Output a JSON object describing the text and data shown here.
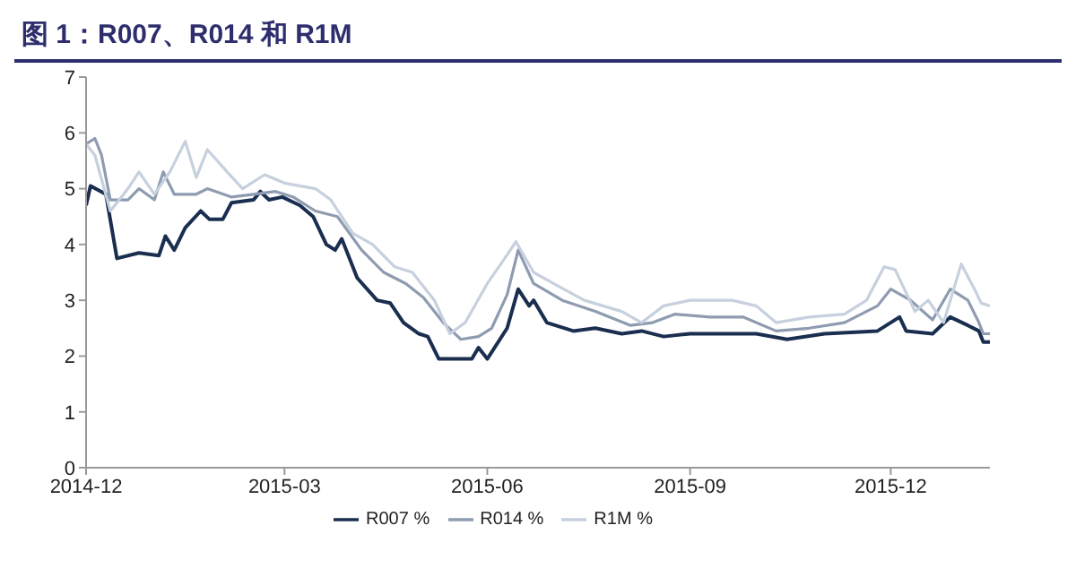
{
  "chart_data": {
    "type": "line",
    "title": "图 1：R007、R014 和 R1M",
    "legend": "bottom",
    "grid": false,
    "marker": "none",
    "line_style": "solid",
    "xlim": [
      "2014-12-01",
      "2016-01-15"
    ],
    "xticks": [
      "2014-12",
      "2015-03",
      "2015-06",
      "2015-09",
      "2015-12"
    ],
    "ylim": [
      0,
      7
    ],
    "yticks": [
      0,
      1,
      2,
      3,
      4,
      5,
      6,
      7
    ],
    "series": [
      {
        "name": "R007 %",
        "color": "#1a2e4f",
        "x": [
          "2014-12-01",
          "2014-12-03",
          "2014-12-10",
          "2014-12-15",
          "2014-12-25",
          "2015-01-03",
          "2015-01-06",
          "2015-01-10",
          "2015-01-15",
          "2015-01-22",
          "2015-01-26",
          "2015-02-01",
          "2015-02-05",
          "2015-02-15",
          "2015-02-18",
          "2015-02-22",
          "2015-02-28",
          "2015-03-08",
          "2015-03-14",
          "2015-03-20",
          "2015-03-24",
          "2015-03-27",
          "2015-04-03",
          "2015-04-12",
          "2015-04-18",
          "2015-04-24",
          "2015-05-01",
          "2015-05-05",
          "2015-05-10",
          "2015-05-25",
          "2015-05-28",
          "2015-06-01",
          "2015-06-10",
          "2015-06-15",
          "2015-06-20",
          "2015-06-22",
          "2015-06-28",
          "2015-07-10",
          "2015-07-20",
          "2015-08-01",
          "2015-08-10",
          "2015-08-20",
          "2015-09-01",
          "2015-10-01",
          "2015-10-15",
          "2015-11-01",
          "2015-11-25",
          "2015-12-05",
          "2015-12-08",
          "2015-12-20",
          "2015-12-28",
          "2016-01-05",
          "2016-01-10",
          "2016-01-12",
          "2016-01-15"
        ],
        "values": [
          4.7,
          5.05,
          4.9,
          3.75,
          3.85,
          3.8,
          4.15,
          3.9,
          4.3,
          4.6,
          4.45,
          4.45,
          4.75,
          4.8,
          4.95,
          4.8,
          4.85,
          4.7,
          4.5,
          4.0,
          3.9,
          4.1,
          3.4,
          3.0,
          2.95,
          2.6,
          2.4,
          2.35,
          1.95,
          1.95,
          2.15,
          1.95,
          2.5,
          3.2,
          2.9,
          3.0,
          2.6,
          2.45,
          2.5,
          2.4,
          2.45,
          2.35,
          2.4,
          2.4,
          2.3,
          2.4,
          2.45,
          2.7,
          2.45,
          2.4,
          2.7,
          2.55,
          2.45,
          2.25,
          2.25
        ]
      },
      {
        "name": "R014 %",
        "color": "#8e9bb0",
        "x": [
          "2014-12-01",
          "2014-12-05",
          "2014-12-08",
          "2014-12-12",
          "2014-12-20",
          "2014-12-25",
          "2015-01-01",
          "2015-01-05",
          "2015-01-10",
          "2015-01-20",
          "2015-01-25",
          "2015-02-05",
          "2015-02-15",
          "2015-02-25",
          "2015-03-05",
          "2015-03-15",
          "2015-03-25",
          "2015-04-05",
          "2015-04-15",
          "2015-04-25",
          "2015-05-03",
          "2015-05-12",
          "2015-05-20",
          "2015-05-28",
          "2015-06-03",
          "2015-06-10",
          "2015-06-15",
          "2015-06-22",
          "2015-07-05",
          "2015-07-20",
          "2015-08-05",
          "2015-08-15",
          "2015-08-25",
          "2015-09-10",
          "2015-09-25",
          "2015-10-10",
          "2015-10-25",
          "2015-11-10",
          "2015-11-25",
          "2015-12-01",
          "2015-12-10",
          "2015-12-20",
          "2015-12-28",
          "2016-01-05",
          "2016-01-10",
          "2016-01-12",
          "2016-01-15"
        ],
        "values": [
          5.8,
          5.9,
          5.6,
          4.8,
          4.8,
          5.0,
          4.8,
          5.3,
          4.9,
          4.9,
          5.0,
          4.85,
          4.9,
          4.95,
          4.85,
          4.6,
          4.5,
          3.9,
          3.5,
          3.3,
          3.05,
          2.6,
          2.3,
          2.35,
          2.5,
          3.1,
          3.9,
          3.3,
          3.0,
          2.8,
          2.55,
          2.6,
          2.75,
          2.7,
          2.7,
          2.45,
          2.5,
          2.6,
          2.9,
          3.2,
          3.0,
          2.65,
          3.2,
          3.0,
          2.6,
          2.4,
          2.4
        ]
      },
      {
        "name": "R1M %",
        "color": "#c6d0de",
        "x": [
          "2014-12-01",
          "2014-12-05",
          "2014-12-12",
          "2014-12-20",
          "2014-12-25",
          "2015-01-01",
          "2015-01-08",
          "2015-01-15",
          "2015-01-20",
          "2015-01-25",
          "2015-02-03",
          "2015-02-10",
          "2015-02-20",
          "2015-03-01",
          "2015-03-15",
          "2015-03-22",
          "2015-04-01",
          "2015-04-10",
          "2015-04-20",
          "2015-04-28",
          "2015-05-08",
          "2015-05-15",
          "2015-05-22",
          "2015-06-01",
          "2015-06-08",
          "2015-06-14",
          "2015-06-22",
          "2015-07-01",
          "2015-07-15",
          "2015-08-01",
          "2015-08-10",
          "2015-08-20",
          "2015-09-01",
          "2015-09-20",
          "2015-10-01",
          "2015-10-10",
          "2015-10-25",
          "2015-11-10",
          "2015-11-20",
          "2015-11-28",
          "2015-12-03",
          "2015-12-12",
          "2015-12-18",
          "2015-12-25",
          "2016-01-02",
          "2016-01-08",
          "2016-01-11",
          "2016-01-15"
        ],
        "values": [
          5.8,
          5.6,
          4.6,
          5.0,
          5.3,
          4.9,
          5.3,
          5.85,
          5.2,
          5.7,
          5.3,
          5.0,
          5.25,
          5.1,
          5.0,
          4.8,
          4.2,
          4.0,
          3.6,
          3.5,
          3.0,
          2.4,
          2.6,
          3.3,
          3.7,
          4.05,
          3.5,
          3.3,
          3.0,
          2.8,
          2.6,
          2.9,
          3.0,
          3.0,
          2.9,
          2.6,
          2.7,
          2.75,
          3.0,
          3.6,
          3.55,
          2.8,
          3.0,
          2.6,
          3.65,
          3.2,
          2.95,
          2.9
        ]
      }
    ]
  }
}
